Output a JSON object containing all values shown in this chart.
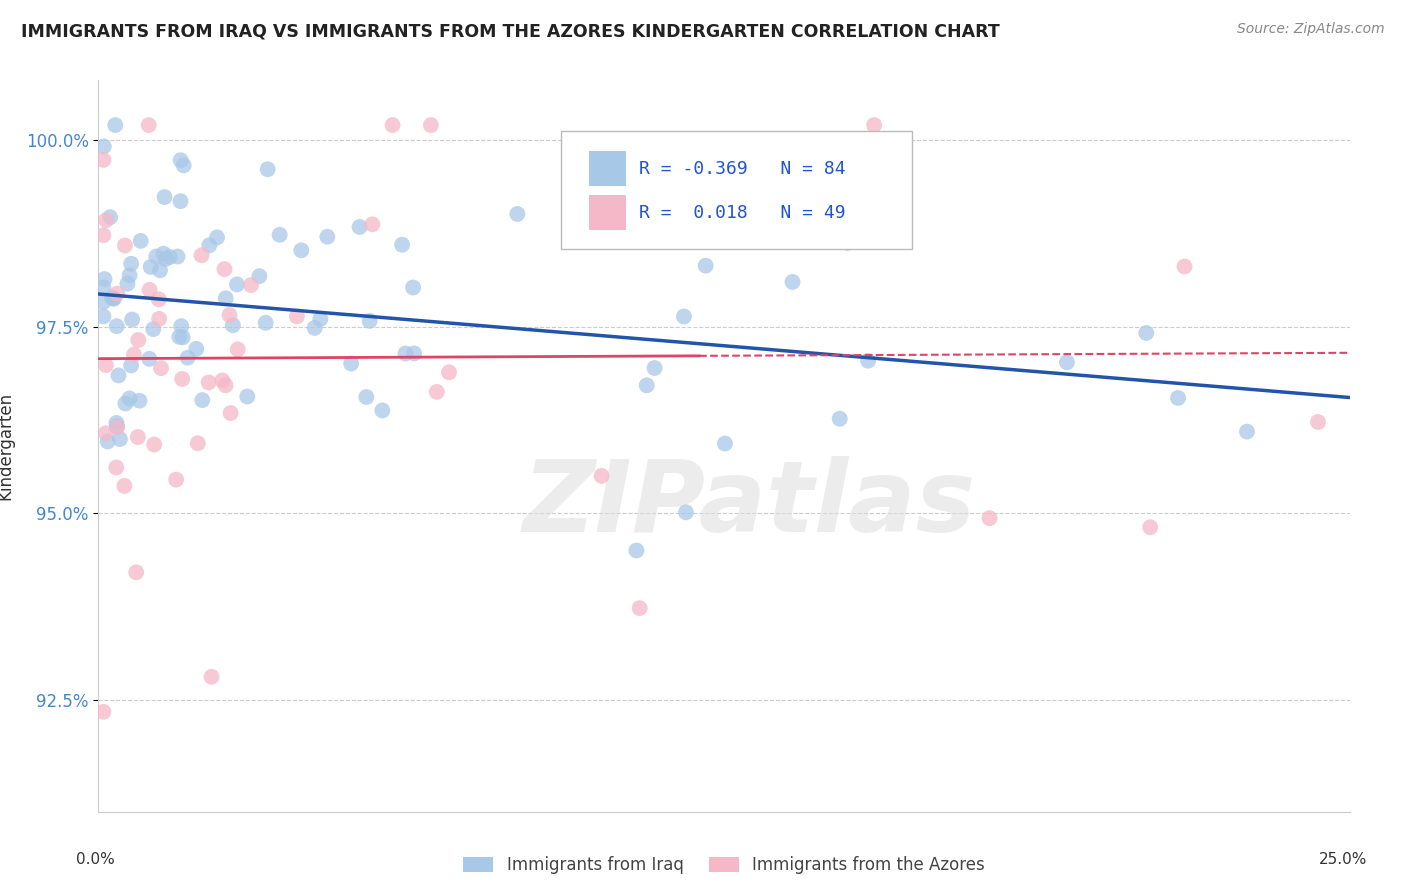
{
  "title": "IMMIGRANTS FROM IRAQ VS IMMIGRANTS FROM THE AZORES KINDERGARTEN CORRELATION CHART",
  "source": "Source: ZipAtlas.com",
  "ylabel": "Kindergarten",
  "ytick_labels": [
    "92.5%",
    "95.0%",
    "97.5%",
    "100.0%"
  ],
  "ytick_values": [
    0.925,
    0.95,
    0.975,
    1.0
  ],
  "xtick_labels": [
    "0.0%",
    "25.0%"
  ],
  "xtick_values": [
    0.0,
    0.25
  ],
  "xlim": [
    0.0,
    0.25
  ],
  "ylim": [
    0.91,
    1.008
  ],
  "blue_R": -0.369,
  "blue_N": 84,
  "pink_R": 0.018,
  "pink_N": 49,
  "blue_color": "#a8c8e8",
  "pink_color": "#f4b8c8",
  "blue_line_color": "#2255aa",
  "pink_line_color": "#dd4466",
  "pink_line_dash": true,
  "watermark": "ZIPatlas",
  "legend_label_blue": "Immigrants from Iraq",
  "legend_label_pink": "Immigrants from the Azores",
  "legend_R_color": "#2255cc",
  "legend_N_color": "#2255cc",
  "title_color": "#222222",
  "source_color": "#888888",
  "ylabel_color": "#333333",
  "ytick_color": "#4488cc",
  "xtick_color": "#333333",
  "grid_color": "#cccccc",
  "spine_color": "#cccccc"
}
